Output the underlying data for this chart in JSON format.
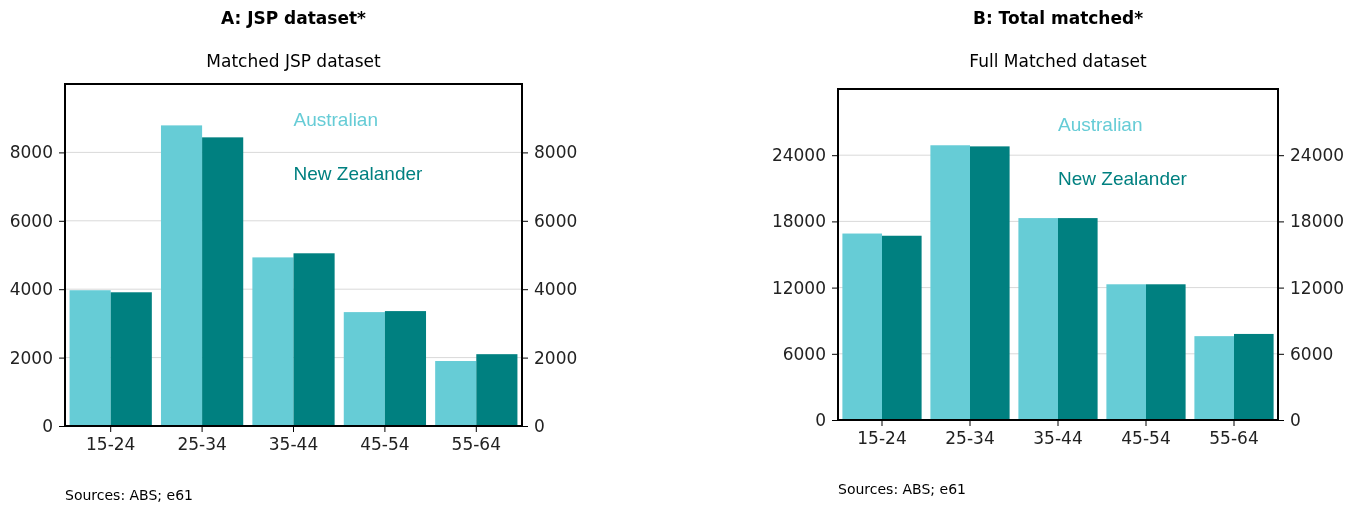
{
  "chart_data": [
    {
      "type": "bar",
      "title": "A: JSP dataset*",
      "subtitle": "Matched JSP dataset",
      "categories": [
        "15-24",
        "25-34",
        "35-44",
        "45-54",
        "55-64"
      ],
      "series": [
        {
          "name": "Australian",
          "color": "#66ccd6",
          "values": [
            3970,
            8790,
            4930,
            3330,
            1900
          ]
        },
        {
          "name": "New Zealander",
          "color": "#008080",
          "values": [
            3910,
            8440,
            5050,
            3360,
            2100
          ]
        }
      ],
      "ylim": [
        0,
        10000
      ],
      "yticks": [
        0,
        2000,
        4000,
        6000,
        8000
      ],
      "y2lim": [
        0,
        10000
      ],
      "y2ticks": [
        0,
        2000,
        4000,
        6000,
        8000
      ],
      "grid": "y",
      "legend": "top right",
      "annotations": [
        "Sources: ABS; e61"
      ]
    },
    {
      "type": "bar",
      "title": "B: Total matched*",
      "subtitle": "Full Matched dataset",
      "categories": [
        "15-24",
        "25-34",
        "35-44",
        "45-54",
        "55-64"
      ],
      "series": [
        {
          "name": "Australian",
          "color": "#66ccd6",
          "values": [
            16900,
            24900,
            18300,
            12300,
            7600
          ]
        },
        {
          "name": "New Zealander",
          "color": "#008080",
          "values": [
            16700,
            24800,
            18300,
            12300,
            7800
          ]
        }
      ],
      "ylim": [
        0,
        30000
      ],
      "yticks": [
        0,
        6000,
        12000,
        18000,
        24000
      ],
      "y2lim": [
        0,
        30000
      ],
      "y2ticks": [
        0,
        6000,
        12000,
        18000,
        24000
      ],
      "grid": "y",
      "legend": "top right",
      "annotations": [
        "Sources: ABS; e61"
      ]
    }
  ]
}
